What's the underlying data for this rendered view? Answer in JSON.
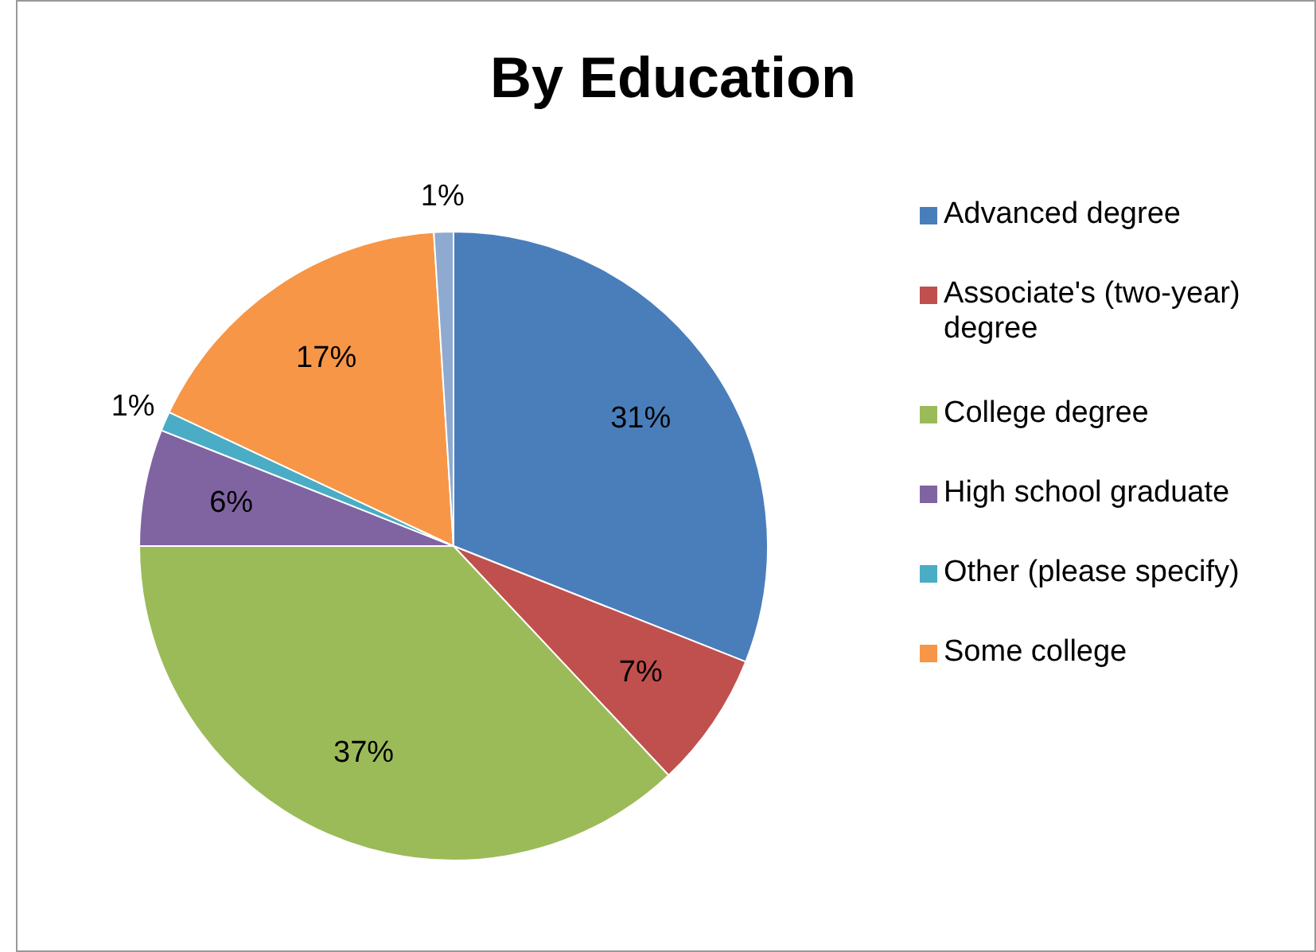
{
  "chart_data": {
    "type": "pie",
    "title": "By Education",
    "categories": [
      "Advanced degree",
      "Associate's (two-year) degree",
      "College degree",
      "High school graduate",
      "Other (please specify)",
      "Some college",
      null
    ],
    "values": [
      31,
      7,
      37,
      6,
      1,
      17,
      1
    ],
    "colors": [
      "#4a7ebb",
      "#c0504d",
      "#9bbb59",
      "#8064a2",
      "#4bacc6",
      "#f79646",
      "#8eaad0"
    ],
    "value_labels": [
      "31%",
      "7%",
      "37%",
      "6%",
      "1%",
      "17%",
      "1%"
    ],
    "legend": "right"
  }
}
